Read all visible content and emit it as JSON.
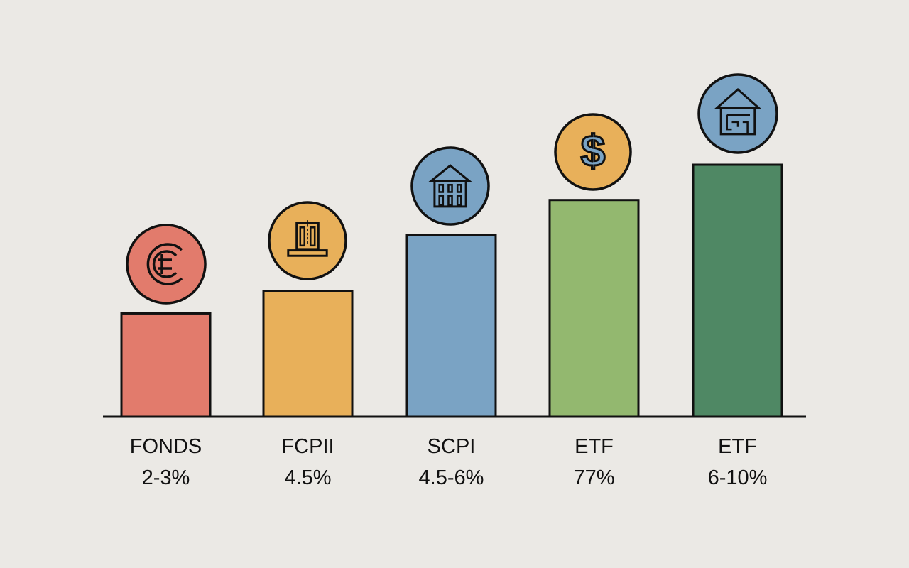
{
  "chart_data": {
    "type": "bar",
    "title": "",
    "xlabel": "",
    "ylabel": "",
    "grid": false,
    "y_axis_shown": false,
    "categories": [
      "FONDS",
      "FCPII",
      "SCPI",
      "ETF",
      "ETF"
    ],
    "value_labels": [
      "2-3%",
      "4.5%",
      "4.5-6%",
      "77%",
      "6-10%"
    ],
    "bar_levels_relative_to_tallest": [
      0.41,
      0.5,
      0.72,
      0.86,
      1.0
    ],
    "colors": [
      "#e27b6c",
      "#e8b05a",
      "#7aa3c4",
      "#93b86f",
      "#4f8864"
    ],
    "icons": [
      {
        "name": "euro-coin-icon",
        "color": "#e27b6c"
      },
      {
        "name": "building-door-icon",
        "color": "#e8b05a"
      },
      {
        "name": "bank-building-icon",
        "color": "#7aa3c4"
      },
      {
        "name": "dollar-coin-icon",
        "color": "#e8b05a"
      },
      {
        "name": "house-icon",
        "color": "#7aa3c4"
      }
    ]
  }
}
